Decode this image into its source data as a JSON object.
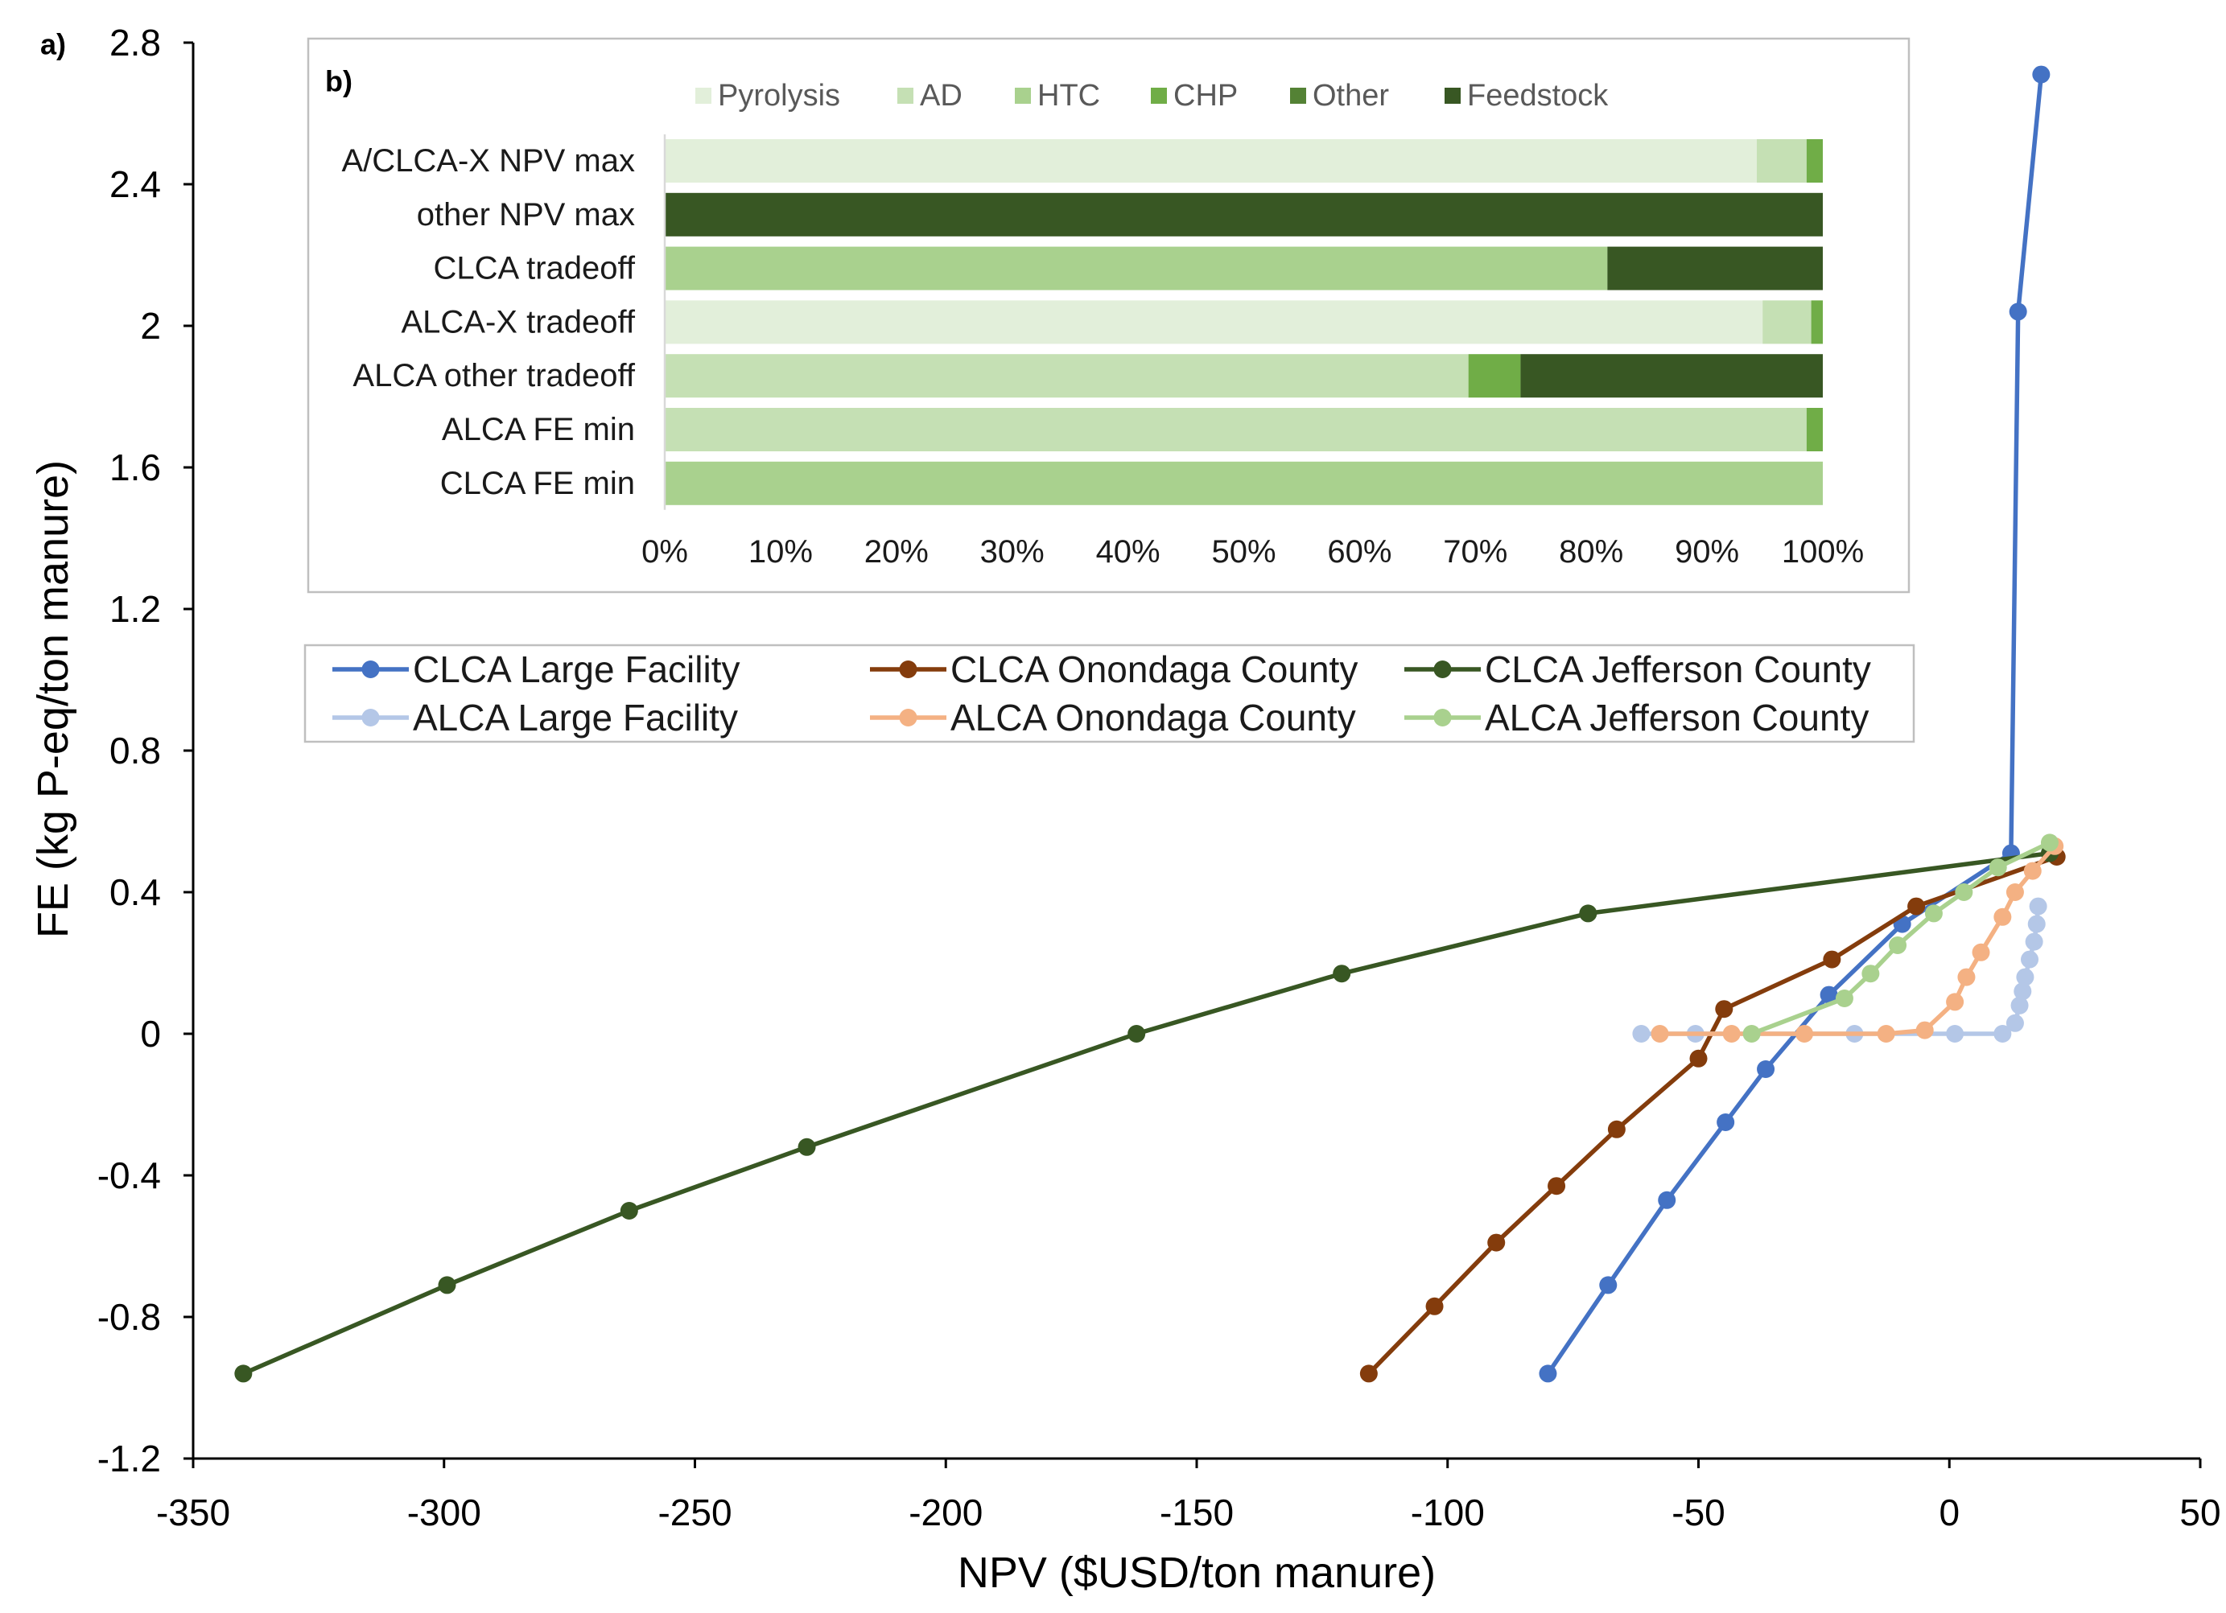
{
  "chart_data": [
    {
      "panel_label": "a)",
      "type": "line",
      "xlabel": "NPV ($USD/ton manure)",
      "ylabel": "FE (kg P-eq/ton manure)",
      "xlim": [
        -350,
        50
      ],
      "ylim": [
        -1.2,
        2.8
      ],
      "xticks": [
        "-350",
        "-300",
        "-250",
        "-200",
        "-150",
        "-100",
        "-50",
        "0",
        "50"
      ],
      "yticks": [
        "-1.2",
        "-0.8",
        "-0.4",
        "0",
        "0.4",
        "0.8",
        "1.2",
        "1.6",
        "2",
        "2.4",
        "2.8"
      ],
      "grid": false,
      "legend": "upper-center",
      "series": [
        {
          "name": "CLCA Large Facility",
          "color": "#4472C4",
          "x": [
            -80,
            -68,
            -56.3,
            -44.6,
            -36.6,
            -24,
            -9.4,
            12.3,
            13.7,
            18.3
          ],
          "y": [
            -0.96,
            -0.71,
            -0.47,
            -0.25,
            -0.1,
            0.11,
            0.31,
            0.51,
            2.04,
            2.71
          ]
        },
        {
          "name": "CLCA Onondaga County",
          "color": "#843C0C",
          "x": [
            -115.7,
            -102.6,
            -90.3,
            -78.3,
            -66.3,
            -50,
            -44.9,
            -23.4,
            -6.6,
            21.4
          ],
          "y": [
            -0.96,
            -0.77,
            -0.59,
            -0.43,
            -0.27,
            -0.07,
            0.07,
            0.21,
            0.36,
            0.5
          ]
        },
        {
          "name": "CLCA Jefferson County",
          "color": "#385723",
          "x": [
            -340,
            -299.4,
            -263.1,
            -227.7,
            -162,
            -121.1,
            -72,
            20
          ],
          "y": [
            -0.96,
            -0.71,
            -0.5,
            -0.32,
            0.0,
            0.17,
            0.34,
            0.51
          ]
        },
        {
          "name": "ALCA Large Facility",
          "color": "#B4C7E7",
          "x": [
            -61.4,
            -50.6,
            -18.9,
            1.1,
            10.6,
            13.1,
            14,
            14.6,
            15.1,
            16,
            16.9,
            17.4,
            17.7
          ],
          "y": [
            0,
            0,
            0,
            0,
            0,
            0.03,
            0.08,
            0.12,
            0.16,
            0.21,
            0.26,
            0.31,
            0.36
          ]
        },
        {
          "name": "ALCA Onondaga County",
          "color": "#F4B183",
          "x": [
            -57.7,
            -43.4,
            -28.9,
            -12.6,
            -4.9,
            1.1,
            3.4,
            6.3,
            10.6,
            13.1,
            16.6,
            21
          ],
          "y": [
            0,
            0,
            0,
            0,
            0.01,
            0.09,
            0.16,
            0.23,
            0.33,
            0.4,
            0.46,
            0.53
          ]
        },
        {
          "name": "ALCA Jefferson County",
          "color": "#A9D18E",
          "x": [
            -39.4,
            -20.9,
            -15.7,
            -10.3,
            -3.1,
            2.9,
            9.7,
            20
          ],
          "y": [
            0,
            0.1,
            0.17,
            0.25,
            0.34,
            0.4,
            0.47,
            0.54
          ]
        }
      ]
    },
    {
      "panel_label": "b)",
      "type": "bar",
      "orientation": "horizontal",
      "stacked": true,
      "xlim": [
        0,
        100
      ],
      "xticks": [
        "0%",
        "10%",
        "20%",
        "30%",
        "40%",
        "50%",
        "60%",
        "70%",
        "80%",
        "90%",
        "100%"
      ],
      "grid": false,
      "legend": "top",
      "categories": [
        "A/CLCA-X NPV max",
        "other NPV max",
        "CLCA tradeoff",
        "ALCA-X tradeoff",
        "ALCA other tradeoff",
        "ALCA FE min",
        "CLCA FE min"
      ],
      "series": [
        {
          "name": "Pyrolysis",
          "color": "#E2EFDA",
          "values": [
            94.3,
            0,
            0,
            94.8,
            0,
            0,
            0
          ]
        },
        {
          "name": "AD",
          "color": "#C5E0B4",
          "values": [
            4.3,
            0,
            0,
            4.2,
            69.4,
            98.6,
            0
          ]
        },
        {
          "name": "HTC",
          "color": "#A9D18E",
          "values": [
            0,
            0,
            81.4,
            0,
            0,
            0,
            100
          ]
        },
        {
          "name": "CHP",
          "color": "#70AD47",
          "values": [
            1.4,
            0,
            0,
            1.0,
            4.5,
            1.4,
            0
          ]
        },
        {
          "name": "Other",
          "color": "#548235",
          "values": [
            0,
            0,
            0,
            0,
            0,
            0,
            0
          ]
        },
        {
          "name": "Feedstock",
          "color": "#385723",
          "values": [
            0,
            100,
            18.6,
            0,
            26.1,
            0,
            0
          ]
        }
      ]
    }
  ]
}
